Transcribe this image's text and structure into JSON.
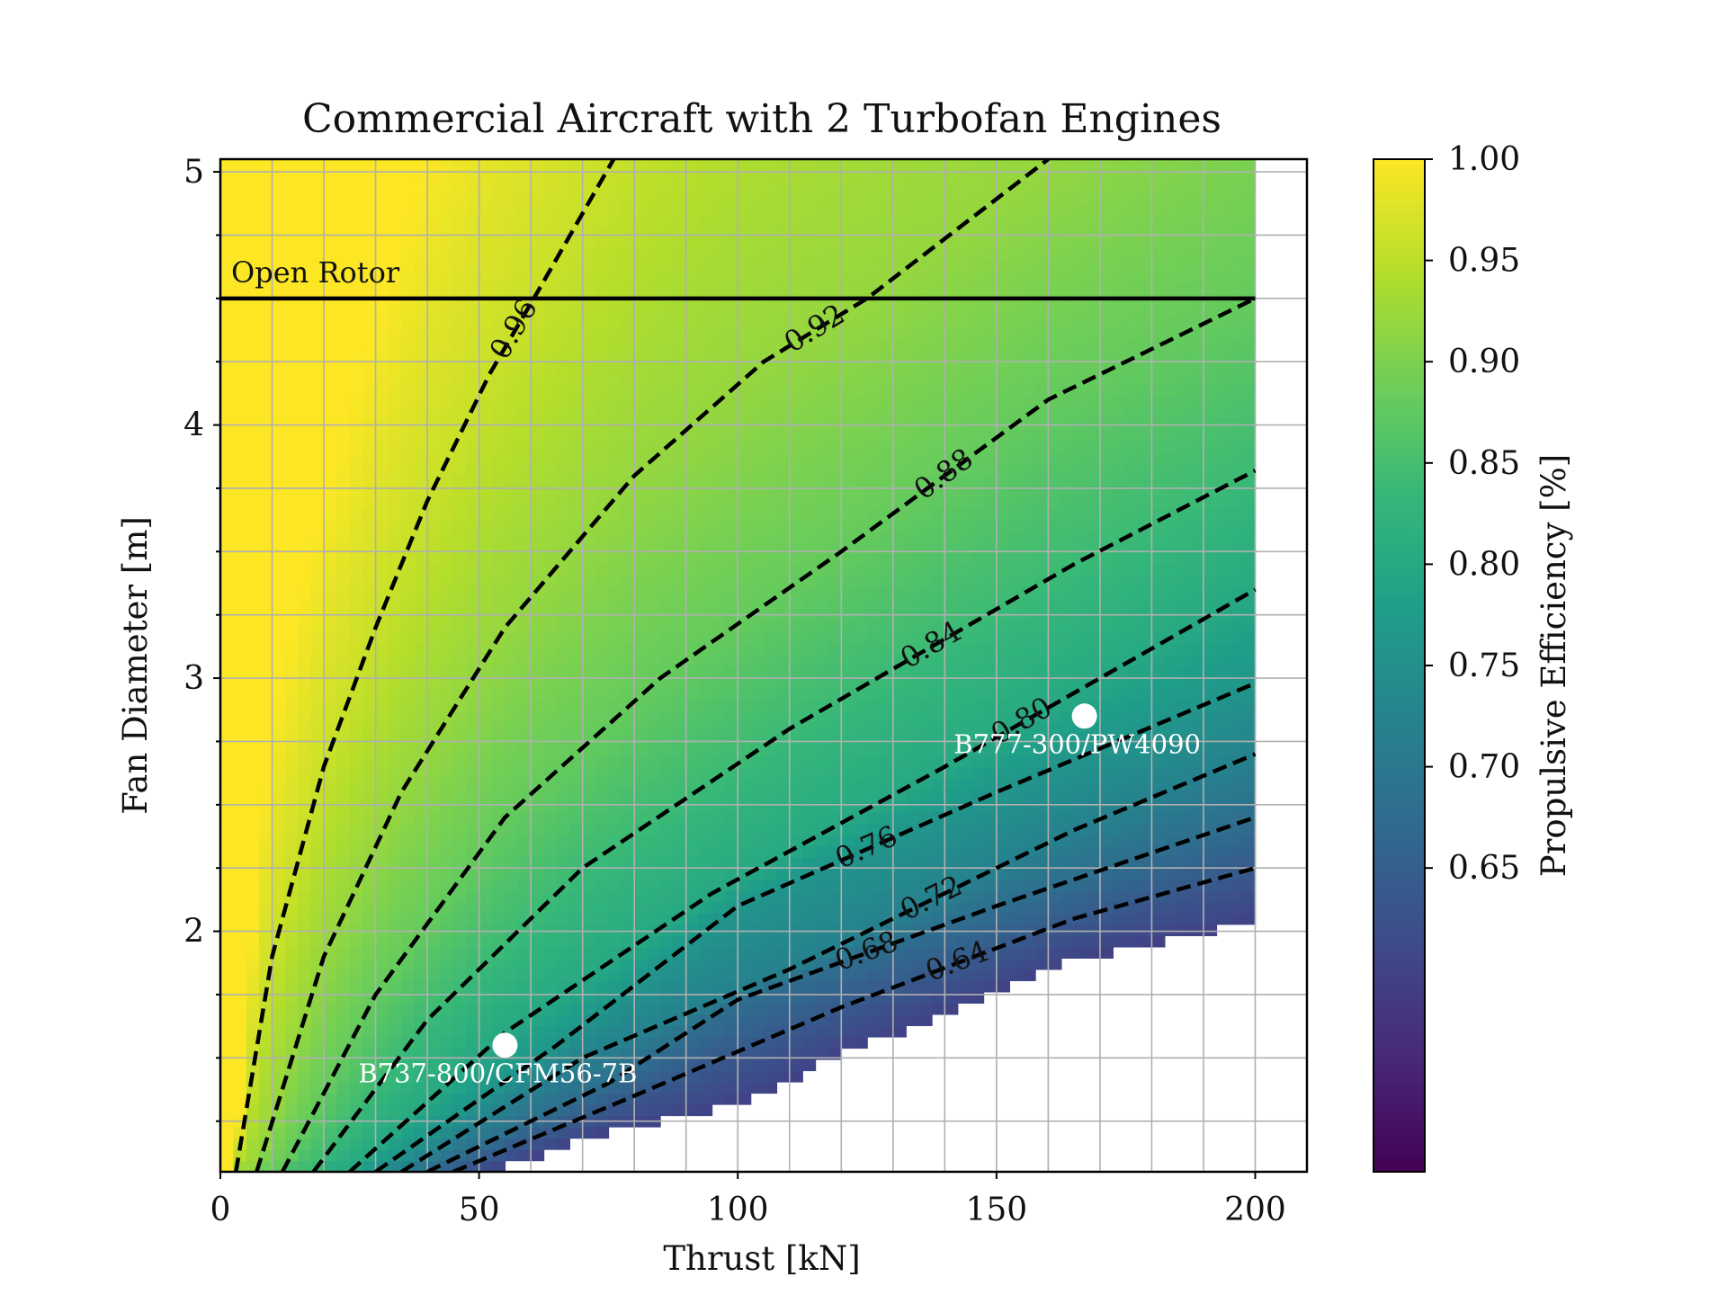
{
  "chart_data": {
    "type": "heatmap",
    "title": "Commercial Aircraft with 2 Turbofan Engines",
    "xlabel": "Thrust [kN]",
    "ylabel": "Fan Diameter [m]",
    "xlim": [
      0,
      210
    ],
    "ylim": [
      1.05,
      5.05
    ],
    "xticks": [
      "0",
      "50",
      "100",
      "150",
      "200"
    ],
    "yticks": [
      "2",
      "3",
      "4",
      "5"
    ],
    "grid": true,
    "colorbar": {
      "label": "Propulsive Efficiency [%]",
      "range": [
        0.5,
        1.0
      ],
      "ticks": [
        "0.65",
        "0.70",
        "0.75",
        "0.80",
        "0.85",
        "0.90",
        "0.95",
        "1.00"
      ],
      "colormap": [
        "#440154",
        "#482878",
        "#3e4a89",
        "#31688e",
        "#26828e",
        "#1f9e89",
        "#35b779",
        "#6ece58",
        "#b5de2b",
        "#fde725"
      ]
    },
    "contours": [
      {
        "level": "0.96",
        "points": [
          [
            3,
            1.05
          ],
          [
            10,
            1.9
          ],
          [
            20,
            2.65
          ],
          [
            30,
            3.2
          ],
          [
            40,
            3.7
          ],
          [
            52,
            4.2
          ],
          [
            62,
            4.55
          ],
          [
            76,
            5.05
          ]
        ]
      },
      {
        "level": "0.92",
        "points": [
          [
            7,
            1.05
          ],
          [
            20,
            1.9
          ],
          [
            35,
            2.55
          ],
          [
            55,
            3.2
          ],
          [
            80,
            3.8
          ],
          [
            105,
            4.25
          ],
          [
            125,
            4.5
          ],
          [
            160,
            5.05
          ]
        ]
      },
      {
        "level": "0.88",
        "points": [
          [
            12,
            1.05
          ],
          [
            30,
            1.75
          ],
          [
            55,
            2.45
          ],
          [
            85,
            3.0
          ],
          [
            120,
            3.5
          ],
          [
            160,
            4.1
          ],
          [
            200,
            4.5
          ]
        ]
      },
      {
        "level": "0.84",
        "points": [
          [
            18,
            1.05
          ],
          [
            40,
            1.65
          ],
          [
            70,
            2.25
          ],
          [
            110,
            2.8
          ],
          [
            165,
            3.45
          ],
          [
            200,
            3.82
          ]
        ]
      },
      {
        "level": "0.80",
        "points": [
          [
            25,
            1.05
          ],
          [
            55,
            1.6
          ],
          [
            95,
            2.15
          ],
          [
            140,
            2.65
          ],
          [
            170,
            3.0
          ],
          [
            200,
            3.35
          ]
        ]
      },
      {
        "level": "0.76",
        "points": [
          [
            30,
            1.05
          ],
          [
            65,
            1.55
          ],
          [
            100,
            2.1
          ],
          [
            150,
            2.55
          ],
          [
            200,
            2.98
          ]
        ]
      },
      {
        "level": "0.72",
        "points": [
          [
            35,
            1.05
          ],
          [
            70,
            1.5
          ],
          [
            110,
            1.85
          ],
          [
            165,
            2.4
          ],
          [
            200,
            2.7
          ]
        ]
      },
      {
        "level": "0.68",
        "points": [
          [
            40,
            1.05
          ],
          [
            75,
            1.4
          ],
          [
            100,
            1.73
          ],
          [
            150,
            2.1
          ],
          [
            200,
            2.45
          ]
        ]
      },
      {
        "level": "0.64",
        "points": [
          [
            45,
            1.05
          ],
          [
            80,
            1.35
          ],
          [
            120,
            1.7
          ],
          [
            165,
            2.05
          ],
          [
            200,
            2.25
          ]
        ]
      }
    ],
    "series": [
      {
        "name": "Open Rotor",
        "type": "hline",
        "y": 4.5,
        "x": [
          0,
          200
        ]
      }
    ],
    "points": [
      {
        "label": "B777-300/PW4090",
        "x": 167,
        "y": 2.85
      },
      {
        "label": "B737-800/CFM56-7B",
        "x": 55,
        "y": 1.55
      }
    ]
  }
}
